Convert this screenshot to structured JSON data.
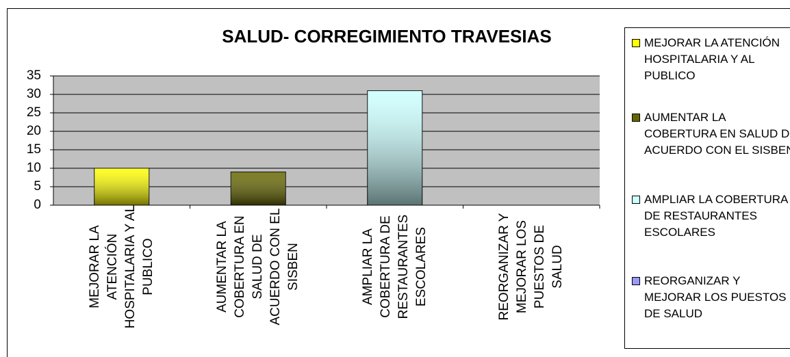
{
  "chart_data": {
    "type": "bar",
    "title": "SALUD- CORREGIMIENTO TRAVESIAS",
    "categories": [
      "MEJORAR LA ATENCIÓN HOSPITALARIA Y AL PUBLICO",
      "AUMENTAR  LA COBERTURA EN SALUD DE ACUERDO CON EL SISBEN",
      "AMPLIAR LA COBERTURA DE RESTAURANTES ESCOLARES",
      "REORGANIZAR Y MEJORAR LOS PUESTOS DE SALUD"
    ],
    "values": [
      10,
      9,
      31,
      0
    ],
    "colors": [
      "#ffff00",
      "#666600",
      "#ccffff",
      "#9999ff"
    ],
    "ylim": [
      0,
      35
    ],
    "yticks": [
      0,
      5,
      10,
      15,
      20,
      25,
      30,
      35
    ],
    "grid": true,
    "legend": "right"
  }
}
